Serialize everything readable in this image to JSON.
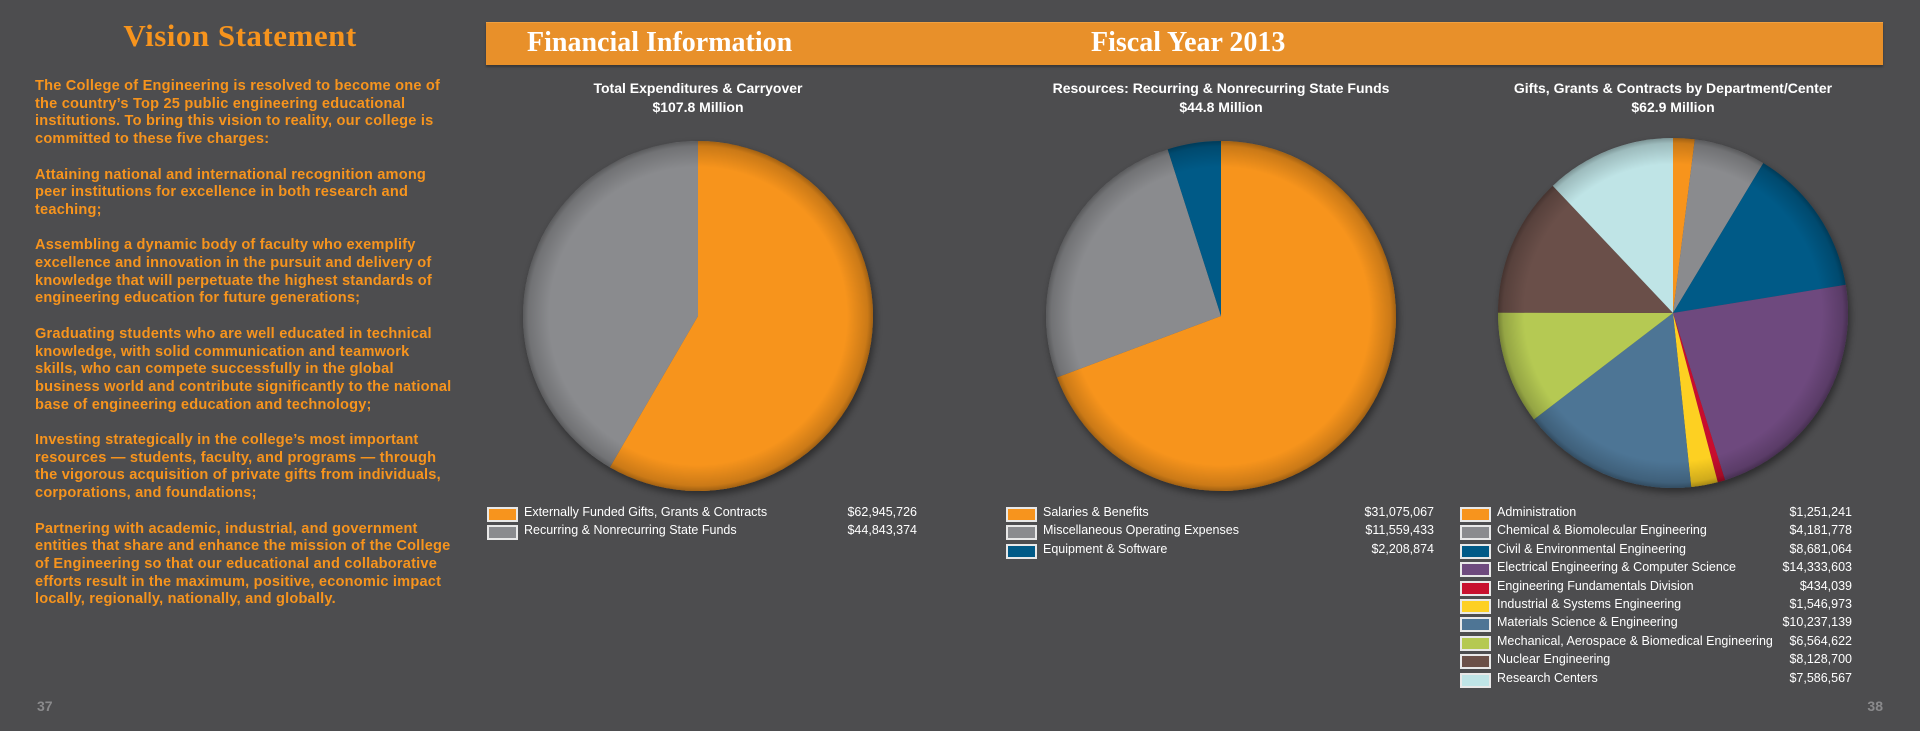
{
  "vision": {
    "title": "Vision Statement",
    "paragraphs": [
      "The College of Engineering is resolved to become one of the country’s Top 25 public engineering educational institutions. To bring this vision to reality, our college is committed to these five charges:",
      "Attaining national and international recognition among peer institutions for excellence in both research and teaching;",
      "Assembling a dynamic body of faculty who exemplify excellence and innovation in the pursuit and delivery of knowledge that will perpetuate the highest standards of engineering education for future generations;",
      "Graduating students who are well educated in technical knowledge, with solid communication and teamwork skills, who can compete successfully in the global business world and contribute significantly to the national base of engineering education and technology;",
      "Investing strategically in the college’s most important resources — students, faculty, and programs — through the vigorous acquisition of private gifts from individuals, corporations, and foundations;",
      "Partnering with academic, industrial, and government entities that share and enhance the mission of the College of Engineering so that our educational and collaborative efforts result in the maximum, positive, economic impact locally, regionally, nationally, and globally."
    ]
  },
  "pages": {
    "left": "37",
    "right": "38"
  },
  "banner": {
    "left": "Financial Information",
    "right": "Fiscal Year 2013",
    "color": "#e8902a"
  },
  "chart_data": [
    {
      "type": "pie",
      "title": "Total Expenditures & Carryover",
      "subtitle": "$107.8 Million",
      "legend": "bottom",
      "slices": [
        {
          "label": "Externally Funded Gifts, Grants & Contracts",
          "value": 62945726,
          "display": "$62,945,726",
          "color": "#f7941d"
        },
        {
          "label": "Recurring & Nonrecurring State Funds",
          "value": 44843374,
          "display": "$44,843,374",
          "color": "#8a8b8e"
        }
      ]
    },
    {
      "type": "pie",
      "title": "Resources: Recurring & Nonrecurring State Funds",
      "subtitle": "$44.8 Million",
      "legend": "bottom",
      "slices": [
        {
          "label": "Salaries & Benefits",
          "value": 31075067,
          "display": "$31,075,067",
          "color": "#f7941d"
        },
        {
          "label": "Miscellaneous Operating Expenses",
          "value": 11559433,
          "display": "$11,559,433",
          "color": "#8a8b8e"
        },
        {
          "label": "Equipment & Software",
          "value": 2208874,
          "display": "$2,208,874",
          "color": "#005a87"
        }
      ]
    },
    {
      "type": "pie",
      "title": "Gifts, Grants & Contracts by Department/Center",
      "subtitle": "$62.9  Million",
      "legend": "bottom",
      "slices": [
        {
          "label": "Administration",
          "value": 1251241,
          "display": "$1,251,241",
          "color": "#f7941d"
        },
        {
          "label": "Chemical & Biomolecular Engineering",
          "value": 4181778,
          "display": "$4,181,778",
          "color": "#8a8b8e"
        },
        {
          "label": "Civil & Environmental Engineering",
          "value": 8681064,
          "display": "$8,681,064",
          "color": "#005a87"
        },
        {
          "label": "Electrical Engineering & Computer Science",
          "value": 14333603,
          "display": "$14,333,603",
          "color": "#6e4a7e"
        },
        {
          "label": "Engineering Fundamentals Division",
          "value": 434039,
          "display": "$434,039",
          "color": "#c8102e"
        },
        {
          "label": "Industrial & Systems Engineering",
          "value": 1546973,
          "display": "$1,546,973",
          "color": "#fdd023"
        },
        {
          "label": "Materials Science & Engineering",
          "value": 10237139,
          "display": "$10,237,139",
          "color": "#4e7595"
        },
        {
          "label": "Mechanical, Aerospace & Biomedical Engineering",
          "value": 6564622,
          "display": "$6,564,622",
          "color": "#b5c952"
        },
        {
          "label": "Nuclear Engineering",
          "value": 8128700,
          "display": "$8,128,700",
          "color": "#6b5048"
        },
        {
          "label": "Research Centers",
          "value": 7586567,
          "display": "$7,586,567",
          "color": "#bfe4e6"
        }
      ]
    }
  ]
}
